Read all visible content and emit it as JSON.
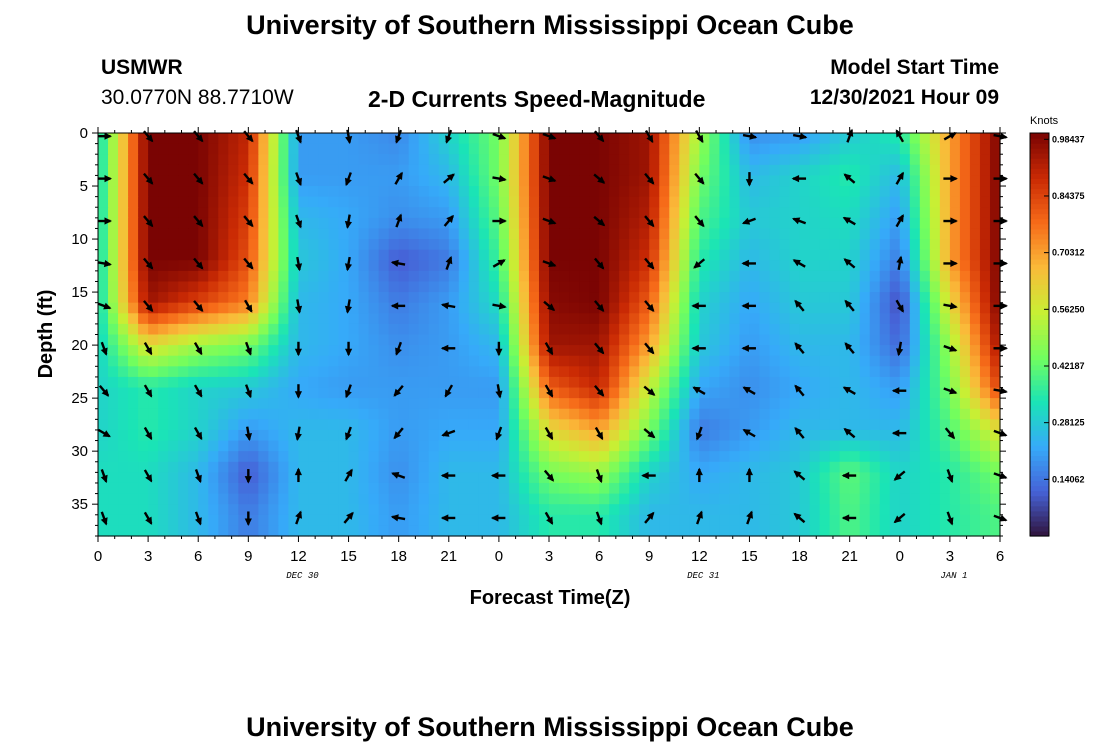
{
  "header": {
    "title": "University of Southern Mississippi Ocean Cube",
    "station_id": "USMWR",
    "coordinates": "30.0770N  88.7710W",
    "model_start_label": "Model Start Time",
    "model_start_value": "12/30/2021 Hour 09"
  },
  "footer": {
    "title": "University of Southern Mississippi Ocean Cube"
  },
  "colors": {
    "palette": [
      "#30123b",
      "#4662d7",
      "#36aaf9",
      "#1ae4b6",
      "#72fe5e",
      "#c8ef34",
      "#faba39",
      "#f66b19",
      "#ca2a04",
      "#7a0403"
    ],
    "arrow": "#000000",
    "axis": "#000000"
  },
  "chart_data": {
    "type": "heatmap",
    "title": "2-D Currents Speed-Magnitude",
    "xlabel": "Forecast Time(Z)",
    "ylabel": "Depth (ft)",
    "x_ticks": [
      "0",
      "3",
      "6",
      "9",
      "12",
      "15",
      "18",
      "21",
      "0",
      "3",
      "6",
      "9",
      "12",
      "15",
      "18",
      "21",
      "0",
      "3",
      "6"
    ],
    "x_hours": [
      0,
      3,
      6,
      9,
      12,
      15,
      18,
      21,
      24,
      27,
      30,
      33,
      36,
      39,
      42,
      45,
      48,
      51,
      54
    ],
    "date_labels": [
      {
        "label": "DEC 30",
        "hour": 12
      },
      {
        "label": "DEC 31",
        "hour": 36
      },
      {
        "label": "JAN 1",
        "hour": 51
      }
    ],
    "y_ticks": [
      0,
      5,
      10,
      15,
      20,
      25,
      30,
      35
    ],
    "xlim": [
      0,
      54
    ],
    "ylim": [
      38,
      0
    ],
    "colorbar": {
      "label": "Knots",
      "tick_labels": [
        "0.98437",
        "0.84375",
        "0.70312",
        "0.56250",
        "0.42187",
        "0.28125",
        "0.14062"
      ],
      "tick_values": [
        0.98437,
        0.84375,
        0.70312,
        0.5625,
        0.42187,
        0.28125,
        0.14062
      ],
      "range": [
        0,
        1.0
      ]
    },
    "time_hours": [
      0,
      3,
      6,
      9,
      12,
      15,
      18,
      21,
      24,
      27,
      30,
      33,
      36,
      39,
      42,
      45,
      48,
      51,
      54
    ],
    "depth_ft": [
      0,
      4,
      8,
      12,
      16,
      20,
      24,
      28,
      32,
      36
    ],
    "speed_knots": [
      [
        0.3,
        1.0,
        1.0,
        0.9,
        0.2,
        0.2,
        0.17,
        0.3,
        0.45,
        1.0,
        1.0,
        0.95,
        0.5,
        0.18,
        0.2,
        0.28,
        0.35,
        0.7,
        1.0
      ],
      [
        0.3,
        1.0,
        1.0,
        0.88,
        0.2,
        0.2,
        0.2,
        0.25,
        0.45,
        1.0,
        1.0,
        0.95,
        0.45,
        0.25,
        0.3,
        0.35,
        0.25,
        0.7,
        1.0
      ],
      [
        0.3,
        1.0,
        1.0,
        0.85,
        0.25,
        0.22,
        0.18,
        0.2,
        0.42,
        1.0,
        1.0,
        0.92,
        0.4,
        0.28,
        0.3,
        0.32,
        0.2,
        0.7,
        1.0
      ],
      [
        0.3,
        1.0,
        1.0,
        0.82,
        0.28,
        0.22,
        0.1,
        0.15,
        0.38,
        1.0,
        1.0,
        0.88,
        0.35,
        0.25,
        0.3,
        0.3,
        0.15,
        0.7,
        1.0
      ],
      [
        0.3,
        0.95,
        0.85,
        0.75,
        0.25,
        0.22,
        0.15,
        0.2,
        0.32,
        0.98,
        1.0,
        0.8,
        0.3,
        0.22,
        0.28,
        0.28,
        0.08,
        0.6,
        1.0
      ],
      [
        0.3,
        0.6,
        0.5,
        0.45,
        0.25,
        0.22,
        0.18,
        0.2,
        0.25,
        0.95,
        0.95,
        0.7,
        0.28,
        0.2,
        0.25,
        0.25,
        0.12,
        0.5,
        0.95
      ],
      [
        0.3,
        0.35,
        0.3,
        0.28,
        0.22,
        0.2,
        0.2,
        0.2,
        0.2,
        0.8,
        0.9,
        0.55,
        0.22,
        0.18,
        0.22,
        0.25,
        0.2,
        0.45,
        0.85
      ],
      [
        0.3,
        0.35,
        0.3,
        0.2,
        0.25,
        0.25,
        0.2,
        0.22,
        0.22,
        0.6,
        0.7,
        0.45,
        0.15,
        0.2,
        0.25,
        0.25,
        0.25,
        0.4,
        0.6
      ],
      [
        0.32,
        0.32,
        0.25,
        0.1,
        0.25,
        0.25,
        0.18,
        0.25,
        0.25,
        0.45,
        0.5,
        0.3,
        0.22,
        0.25,
        0.28,
        0.42,
        0.3,
        0.35,
        0.45
      ],
      [
        0.32,
        0.32,
        0.25,
        0.15,
        0.25,
        0.25,
        0.2,
        0.25,
        0.25,
        0.35,
        0.35,
        0.25,
        0.25,
        0.25,
        0.28,
        0.4,
        0.3,
        0.35,
        0.4
      ]
    ],
    "direction_deg": [
      [
        90,
        140,
        140,
        140,
        160,
        170,
        200,
        200,
        110,
        110,
        140,
        150,
        150,
        100,
        100,
        20,
        330,
        60,
        100
      ],
      [
        90,
        140,
        140,
        140,
        160,
        200,
        30,
        50,
        100,
        110,
        130,
        140,
        140,
        180,
        270,
        310,
        30,
        90,
        90
      ],
      [
        90,
        140,
        140,
        140,
        160,
        190,
        20,
        40,
        90,
        110,
        130,
        140,
        140,
        250,
        290,
        300,
        30,
        90,
        90
      ],
      [
        100,
        140,
        140,
        140,
        170,
        190,
        280,
        20,
        60,
        110,
        140,
        140,
        230,
        270,
        300,
        310,
        10,
        90,
        90
      ],
      [
        110,
        140,
        140,
        150,
        170,
        190,
        270,
        280,
        100,
        130,
        140,
        140,
        270,
        270,
        320,
        320,
        150,
        100,
        90
      ],
      [
        160,
        150,
        150,
        160,
        180,
        180,
        200,
        270,
        180,
        150,
        140,
        140,
        270,
        270,
        320,
        320,
        190,
        110,
        90
      ],
      [
        140,
        150,
        150,
        160,
        180,
        200,
        220,
        210,
        170,
        150,
        140,
        130,
        300,
        300,
        320,
        300,
        270,
        110,
        100
      ],
      [
        120,
        150,
        150,
        170,
        190,
        200,
        220,
        250,
        200,
        150,
        150,
        130,
        200,
        300,
        320,
        310,
        270,
        140,
        110
      ],
      [
        160,
        150,
        160,
        180,
        0,
        30,
        290,
        270,
        270,
        140,
        160,
        270,
        0,
        0,
        310,
        270,
        230,
        160,
        110
      ],
      [
        160,
        150,
        160,
        180,
        20,
        40,
        280,
        270,
        270,
        150,
        160,
        40,
        20,
        20,
        310,
        270,
        230,
        160,
        110
      ]
    ]
  }
}
